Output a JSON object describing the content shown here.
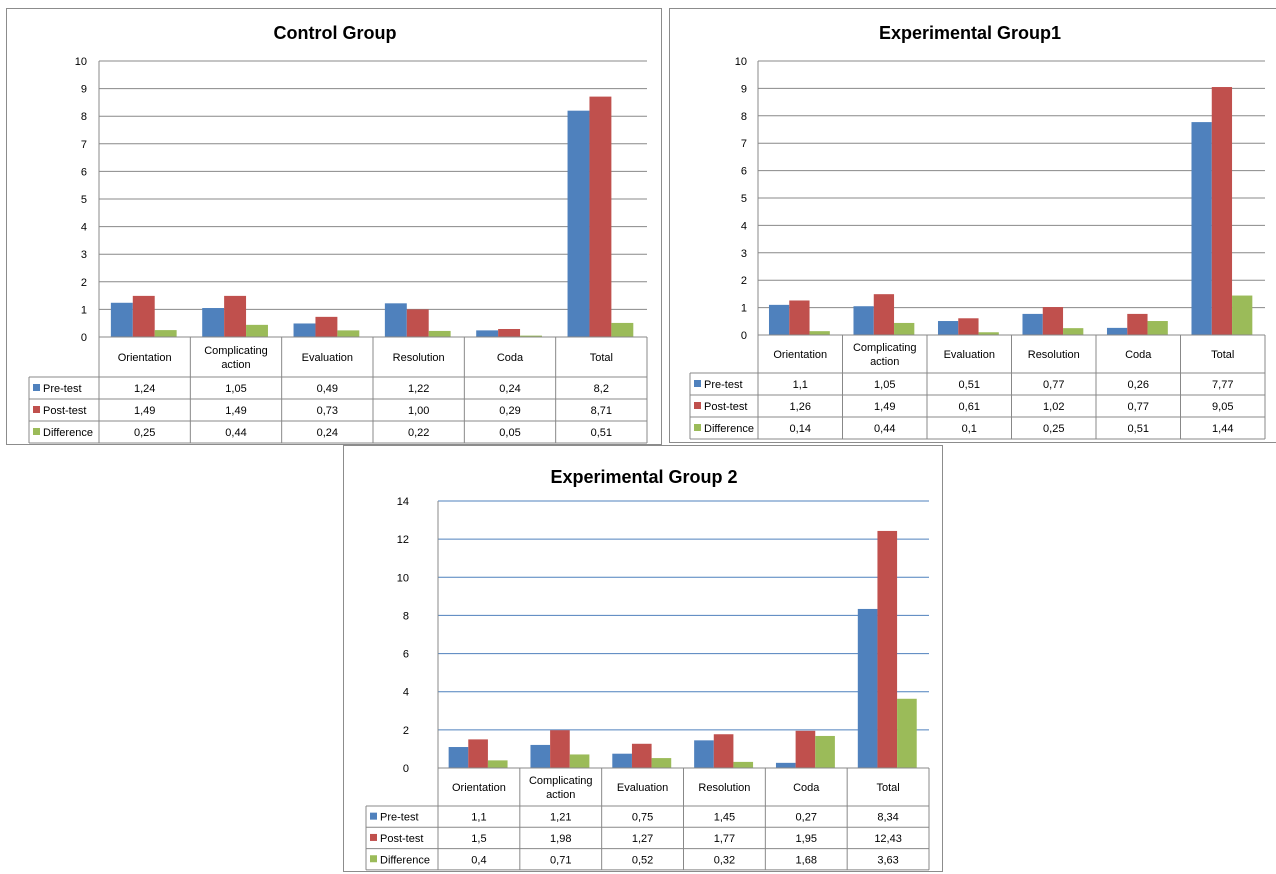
{
  "colors": {
    "pre": "#4F81BD",
    "post": "#C0504D",
    "diff": "#9BBB59",
    "grid": "#888888",
    "grid_blue": "#4F81BD"
  },
  "chart_data": [
    {
      "type": "bar",
      "title": "Control Group",
      "categories": [
        [
          "Orientation"
        ],
        [
          "Complicating",
          "action"
        ],
        [
          "Evaluation"
        ],
        [
          "Resolution"
        ],
        [
          "Coda"
        ],
        [
          "Total"
        ]
      ],
      "ylim": [
        0,
        10
      ],
      "yticks": [
        0,
        1,
        2,
        3,
        4,
        5,
        6,
        7,
        8,
        9,
        10
      ],
      "legend": "data-table",
      "series": [
        {
          "name": "Pre-test",
          "values": [
            1.24,
            1.05,
            0.49,
            1.22,
            0.24,
            8.2
          ],
          "labels": [
            "1,24",
            "1,05",
            "0,49",
            "1,22",
            "0,24",
            "8,2"
          ]
        },
        {
          "name": "Post-test",
          "values": [
            1.49,
            1.49,
            0.73,
            1.0,
            0.29,
            8.71
          ],
          "labels": [
            "1,49",
            "1,49",
            "0,73",
            "1,00",
            "0,29",
            "8,71"
          ]
        },
        {
          "name": "Difference",
          "values": [
            0.25,
            0.44,
            0.24,
            0.22,
            0.05,
            0.51
          ],
          "labels": [
            "0,25",
            "0,44",
            "0,24",
            "0,22",
            "0,05",
            "0,51"
          ]
        }
      ]
    },
    {
      "type": "bar",
      "title": "Experimental  Group1",
      "categories": [
        [
          "Orientation"
        ],
        [
          "Complicating",
          "action"
        ],
        [
          "Evaluation"
        ],
        [
          "Resolution"
        ],
        [
          "Coda"
        ],
        [
          "Total"
        ]
      ],
      "ylim": [
        0,
        10
      ],
      "yticks": [
        0,
        1,
        2,
        3,
        4,
        5,
        6,
        7,
        8,
        9,
        10
      ],
      "legend": "data-table",
      "series": [
        {
          "name": "Pre-test",
          "values": [
            1.1,
            1.05,
            0.51,
            0.77,
            0.26,
            7.77
          ],
          "labels": [
            "1,1",
            "1,05",
            "0,51",
            "0,77",
            "0,26",
            "7,77"
          ]
        },
        {
          "name": "Post-test",
          "values": [
            1.26,
            1.49,
            0.61,
            1.02,
            0.77,
            9.05
          ],
          "labels": [
            "1,26",
            "1,49",
            "0,61",
            "1,02",
            "0,77",
            "9,05"
          ]
        },
        {
          "name": "Difference",
          "values": [
            0.14,
            0.44,
            0.1,
            0.25,
            0.51,
            1.44
          ],
          "labels": [
            "0,14",
            "0,44",
            "0,1",
            "0,25",
            "0,51",
            "1,44"
          ]
        }
      ]
    },
    {
      "type": "bar",
      "title": "Experimental Group 2",
      "categories": [
        [
          "Orientation"
        ],
        [
          "Complicating",
          "action"
        ],
        [
          "Evaluation"
        ],
        [
          "Resolution"
        ],
        [
          "Coda"
        ],
        [
          "Total"
        ]
      ],
      "ylim": [
        0,
        14
      ],
      "yticks": [
        0,
        2,
        4,
        6,
        8,
        10,
        12,
        14
      ],
      "legend": "data-table",
      "series": [
        {
          "name": "Pre-test",
          "values": [
            1.1,
            1.21,
            0.75,
            1.45,
            0.27,
            8.34
          ],
          "labels": [
            "1,1",
            "1,21",
            "0,75",
            "1,45",
            "0,27",
            "8,34"
          ]
        },
        {
          "name": "Post-test",
          "values": [
            1.5,
            1.98,
            1.27,
            1.77,
            1.95,
            12.43
          ],
          "labels": [
            "1,5",
            "1,98",
            "1,27",
            "1,77",
            "1,95",
            "12,43"
          ]
        },
        {
          "name": "Difference",
          "values": [
            0.4,
            0.71,
            0.52,
            0.32,
            1.68,
            3.63
          ],
          "labels": [
            "0,4",
            "0,71",
            "0,52",
            "0,32",
            "1,68",
            "3,63"
          ]
        }
      ]
    }
  ]
}
